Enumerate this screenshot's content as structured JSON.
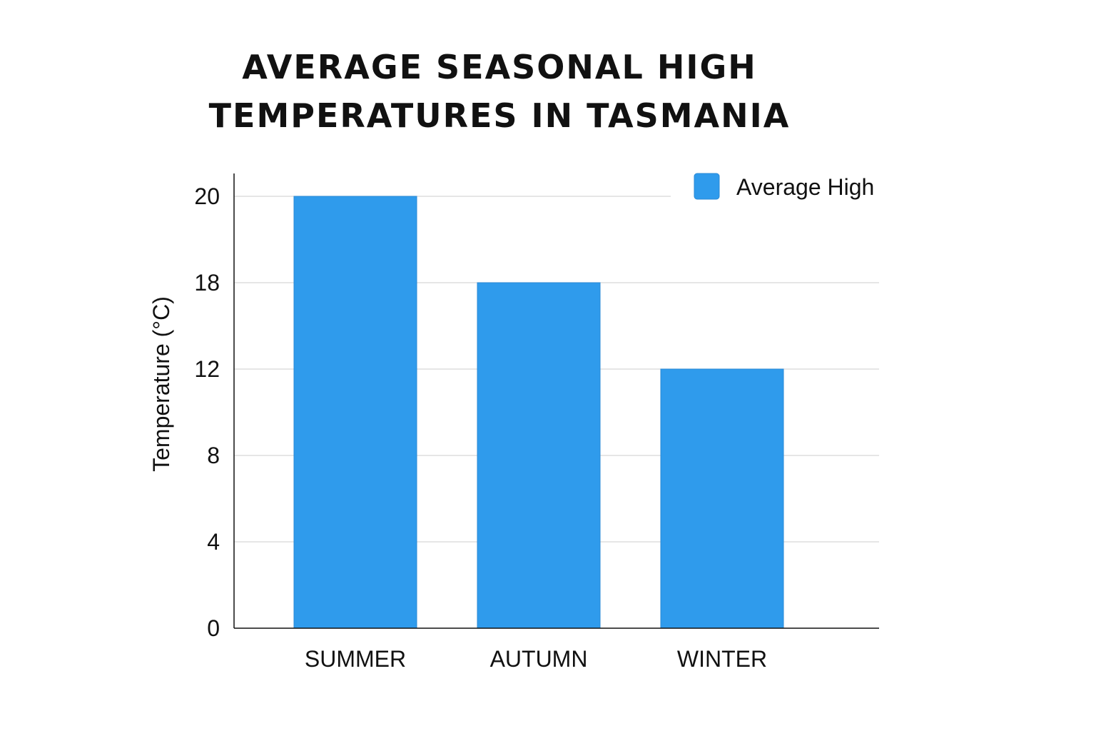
{
  "chart_data": {
    "type": "bar",
    "title_lines": [
      "AVERAGE SEASONAL HIGH",
      "TEMPERATURES IN TASMANIA"
    ],
    "title": "AVERAGE SEASONAL HIGH TEMPERATURES IN TASMANIA",
    "xlabel": "",
    "ylabel": "Temperature (°C)",
    "categories": [
      "SUMMER",
      "AUTUMN",
      "WINTER"
    ],
    "series": [
      {
        "name": "Average High",
        "values": [
          20,
          18,
          12
        ],
        "color": "#2f9bec"
      }
    ],
    "yticks": [
      0,
      4,
      8,
      12,
      18,
      20
    ],
    "ylim": [
      0,
      21
    ],
    "grid": true,
    "legend": "top-right"
  }
}
